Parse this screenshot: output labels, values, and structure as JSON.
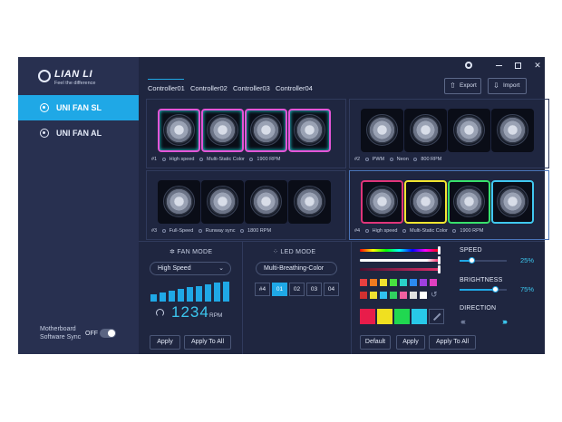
{
  "app": {
    "brand": "LIAN LI",
    "tagline": "Feel the difference"
  },
  "sidebar": {
    "items": [
      {
        "label": "UNI FAN SL",
        "active": true
      },
      {
        "label": "UNI FAN AL",
        "active": false
      }
    ],
    "sync_label": "Motherboard Software Sync",
    "sync_state": "OFF"
  },
  "window_controls": {
    "settings_icon": "gear-icon",
    "minimize_icon": "minimize-icon",
    "maximize_icon": "maximize-icon",
    "close_glyph": "✕"
  },
  "header": {
    "tabs": [
      "Controller01",
      "Controller02",
      "Controller03",
      "Controller04"
    ],
    "active_tab": 0,
    "export_label": "Export",
    "import_label": "Import"
  },
  "controllers": [
    {
      "id": "#1",
      "mode": "High speed",
      "effect": "Multi-Static Color",
      "rpm": "1900 RPM",
      "lighting": "rainbow"
    },
    {
      "id": "#2",
      "mode": "PWM",
      "effect": "Neon",
      "rpm": "800 RPM",
      "lighting": "off"
    },
    {
      "id": "#3",
      "mode": "Full-Speed",
      "effect": "Runway sync",
      "rpm": "1800 RPM",
      "lighting": "off"
    },
    {
      "id": "#4",
      "mode": "High speed",
      "effect": "Multi-Static Color",
      "rpm": "1900 RPM",
      "lighting": "multi",
      "selected": true
    }
  ],
  "fan_mode": {
    "title": "FAN MODE",
    "selected": "High Speed",
    "level": 1.0,
    "rpm_value": "1234",
    "rpm_unit": "RPM",
    "apply_label": "Apply",
    "apply_all_label": "Apply To All"
  },
  "led_mode": {
    "title": "LED MODE",
    "selected": "Multi-Breathing-Color",
    "segments": [
      "#4",
      "01",
      "02",
      "03",
      "04"
    ],
    "active_segment": 1
  },
  "color_panel": {
    "swatch_colors": [
      "#e84040",
      "#f07a20",
      "#f0e030",
      "#48e040",
      "#2ad0c8",
      "#2c8af0",
      "#a040e0",
      "#e040c0",
      "#d03030",
      "#f0e030",
      "#30c0f0",
      "#30d060",
      "#f060a0",
      "#e0e0e0",
      "#ffffff"
    ],
    "big_swatches": [
      "#e81c4a",
      "#f0e020",
      "#20d850",
      "#28c8e8"
    ],
    "default_label": "Default",
    "apply_label": "Apply",
    "apply_all_label": "Apply To All"
  },
  "adjust": {
    "speed_label": "SPEED",
    "speed_value": "25%",
    "speed_fraction": 0.25,
    "brightness_label": "BRIGHTNESS",
    "brightness_value": "75%",
    "brightness_fraction": 0.75,
    "direction_label": "DIRECTION",
    "direction_left": "‹‹‹‹",
    "direction_right": "››››"
  }
}
